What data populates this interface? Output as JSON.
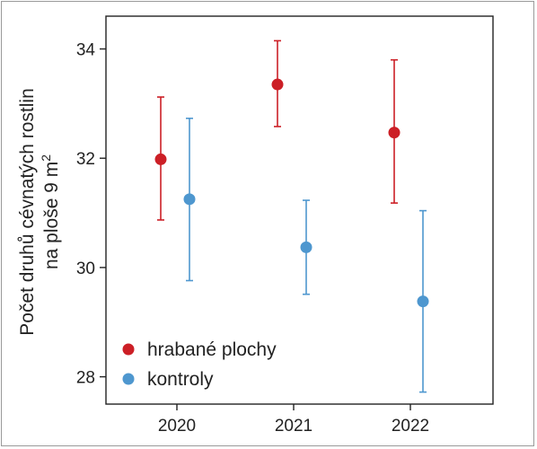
{
  "chart_data": {
    "type": "scatter",
    "ylabel_line1": "Počet druhů cévnatých rostlin",
    "ylabel_line2_prefix": "na ploše 9 m",
    "ylabel_line2_sup": "2",
    "ylim": [
      27.5,
      34.6
    ],
    "yticks": [
      28,
      30,
      32,
      34
    ],
    "categories": [
      "2020",
      "2021",
      "2022"
    ],
    "legend_position": "bottom-left",
    "series": [
      {
        "name": "hrabané plochy",
        "color": "#cc1f26",
        "values": [
          31.98,
          33.35,
          32.47
        ],
        "lower": [
          30.87,
          32.58,
          31.18
        ],
        "upper": [
          33.12,
          34.15,
          33.8
        ]
      },
      {
        "name": "kontroly",
        "color": "#4e97cf",
        "values": [
          31.25,
          30.37,
          29.38
        ],
        "lower": [
          29.76,
          29.51,
          27.72
        ],
        "upper": [
          32.73,
          31.23,
          31.04
        ]
      }
    ]
  }
}
